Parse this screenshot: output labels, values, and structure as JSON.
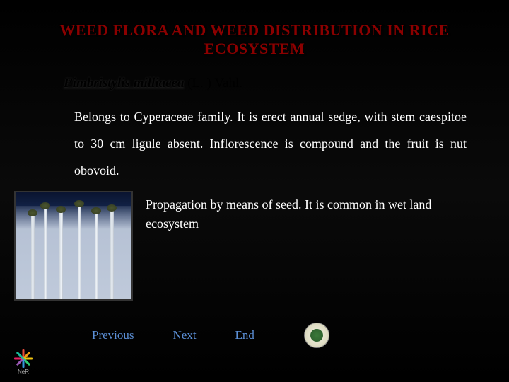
{
  "title": "WEED FLORA  AND WEED DISTRIBUTION IN RICE ECOSYSTEM",
  "species": {
    "name_italic": "Fimbristylis milliacea",
    "author": " (L. ) Vahl."
  },
  "paragraph1": "Belongs to Cyperaceae family. It is erect annual sedge, with stem caespitoe to 30 cm ligule absent. Inflorescence is compound and the fruit is nut obovoid.",
  "paragraph2": "Propagation by means of seed. It is common in wet land ecosystem",
  "nav": {
    "previous": "Previous",
    "next": "Next",
    "end": "End"
  },
  "logo_label": "NeR",
  "colors": {
    "title_color": "#8b0000",
    "body_text": "#ffffff",
    "link_color": "#5b8fd6",
    "background": "#000000"
  }
}
